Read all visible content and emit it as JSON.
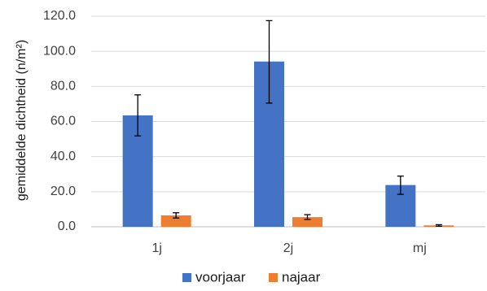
{
  "chart_data": {
    "type": "bar",
    "title": "",
    "xlabel": "",
    "ylabel": "gemiddelde dichtheid (n/m²)",
    "categories": [
      "1j",
      "2j",
      "mj"
    ],
    "series": [
      {
        "name": "voorjaar",
        "color": "#4472C4",
        "values": [
          63.5,
          94.2,
          23.8
        ],
        "error": [
          [
            51.8,
            75.2
          ],
          [
            70.5,
            117.5
          ],
          [
            18.5,
            28.9
          ]
        ]
      },
      {
        "name": "najaar",
        "color": "#ED7D31",
        "values": [
          6.5,
          5.5,
          0.8
        ],
        "error": [
          [
            5.0,
            8.0
          ],
          [
            4.2,
            6.9
          ],
          [
            0.3,
            1.2
          ]
        ]
      }
    ],
    "ylim": [
      0,
      120
    ],
    "ytick_labels": [
      "0.0",
      "20.0",
      "40.0",
      "60.0",
      "80.0",
      "100.0",
      "120.0"
    ],
    "grid": true,
    "legend_position": "bottom"
  }
}
